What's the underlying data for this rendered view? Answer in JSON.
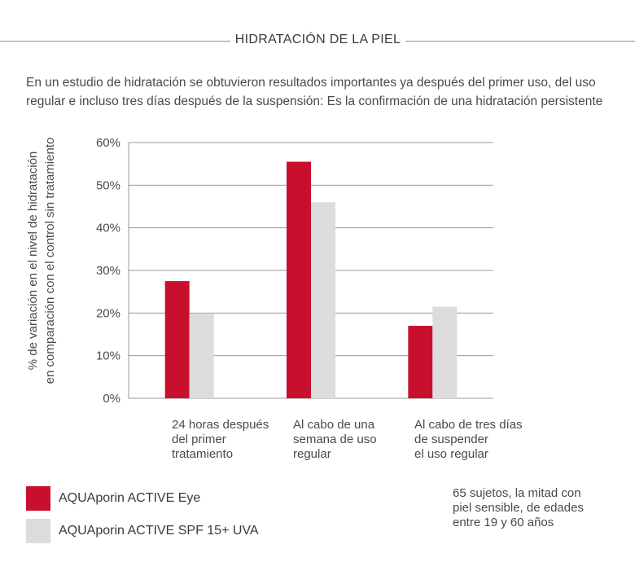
{
  "header": {
    "title": "HIDRATACIÓN DE LA PIEL"
  },
  "intro": {
    "line1": "En un estudio de hidratación se obtuvieron resultados importantes ya después del primer uso, del uso",
    "line2": "regular e incluso tres días después de la suspensión: Es la confirmación de una hidratación persistente"
  },
  "chart_data": {
    "type": "bar",
    "ylabel_lines": [
      "% de variación en el nivel de hidratación",
      "en comparación con el control sin tratamiento"
    ],
    "ylim": [
      0,
      60
    ],
    "yticks": [
      "0%",
      "10%",
      "20%",
      "30%",
      "40%",
      "50%",
      "60%"
    ],
    "grid": true,
    "categories": [
      [
        "24 horas después",
        "del primer",
        "tratamiento"
      ],
      [
        "Al cabo de una",
        "semana de uso",
        "regular"
      ],
      [
        "Al cabo de tres días",
        "de suspender",
        "el uso regular"
      ]
    ],
    "series": [
      {
        "name": "AQUAporin ACTIVE Eye",
        "color": "#c8102e",
        "values": [
          27.5,
          55.5,
          17
        ]
      },
      {
        "name": "AQUAporin ACTIVE SPF 15+ UVA",
        "color": "#dcdcdc",
        "values": [
          19.8,
          46,
          21.5
        ]
      }
    ]
  },
  "note": {
    "line1": "65 sujetos, la mitad con",
    "line2": "piel sensible, de edades",
    "line3": "entre 19 y 60 años"
  }
}
